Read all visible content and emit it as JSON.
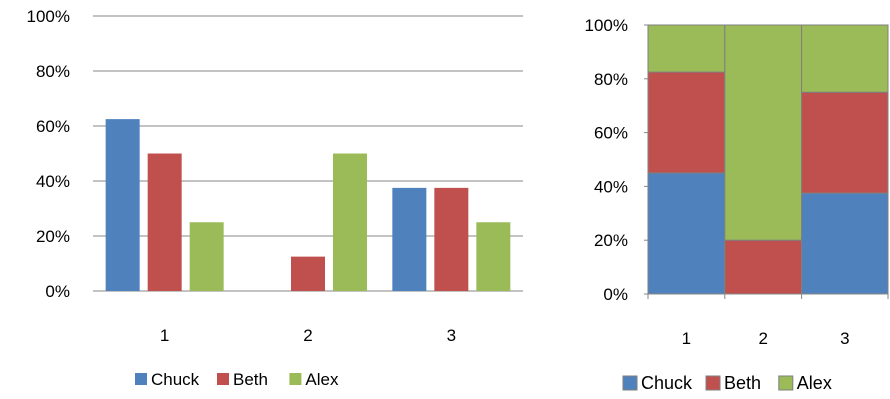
{
  "chart_data": [
    {
      "type": "bar",
      "categories": [
        "1",
        "2",
        "3"
      ],
      "series": [
        {
          "name": "Chuck",
          "values": [
            0.625,
            0.0,
            0.375
          ]
        },
        {
          "name": "Beth",
          "values": [
            0.5,
            0.125,
            0.375
          ]
        },
        {
          "name": "Alex",
          "values": [
            0.25,
            0.5,
            0.25
          ]
        }
      ],
      "ylim": [
        0,
        1
      ],
      "yticks": [
        "0%",
        "20%",
        "40%",
        "60%",
        "80%",
        "100%"
      ],
      "grid": true,
      "legend": "bottom",
      "title": "",
      "xlabel": "",
      "ylabel": ""
    },
    {
      "type": "bar",
      "stacked": true,
      "variable_width": true,
      "categories": [
        "1",
        "2",
        "3"
      ],
      "column_widths": [
        0.4,
        0.4,
        0.45
      ],
      "series": [
        {
          "name": "Chuck",
          "values": [
            0.45,
            0.0,
            0.375
          ]
        },
        {
          "name": "Beth",
          "values": [
            0.375,
            0.2,
            0.375
          ]
        },
        {
          "name": "Alex",
          "values": [
            0.175,
            0.8,
            0.25
          ]
        }
      ],
      "ylim": [
        0,
        1
      ],
      "yticks": [
        "0%",
        "20%",
        "40%",
        "60%",
        "80%",
        "100%"
      ],
      "grid": false,
      "legend": "bottom",
      "title": "",
      "xlabel": "",
      "ylabel": ""
    }
  ],
  "colors": {
    "Chuck": "#4F81BD",
    "Beth": "#C0504D",
    "Alex": "#9BBB59"
  }
}
